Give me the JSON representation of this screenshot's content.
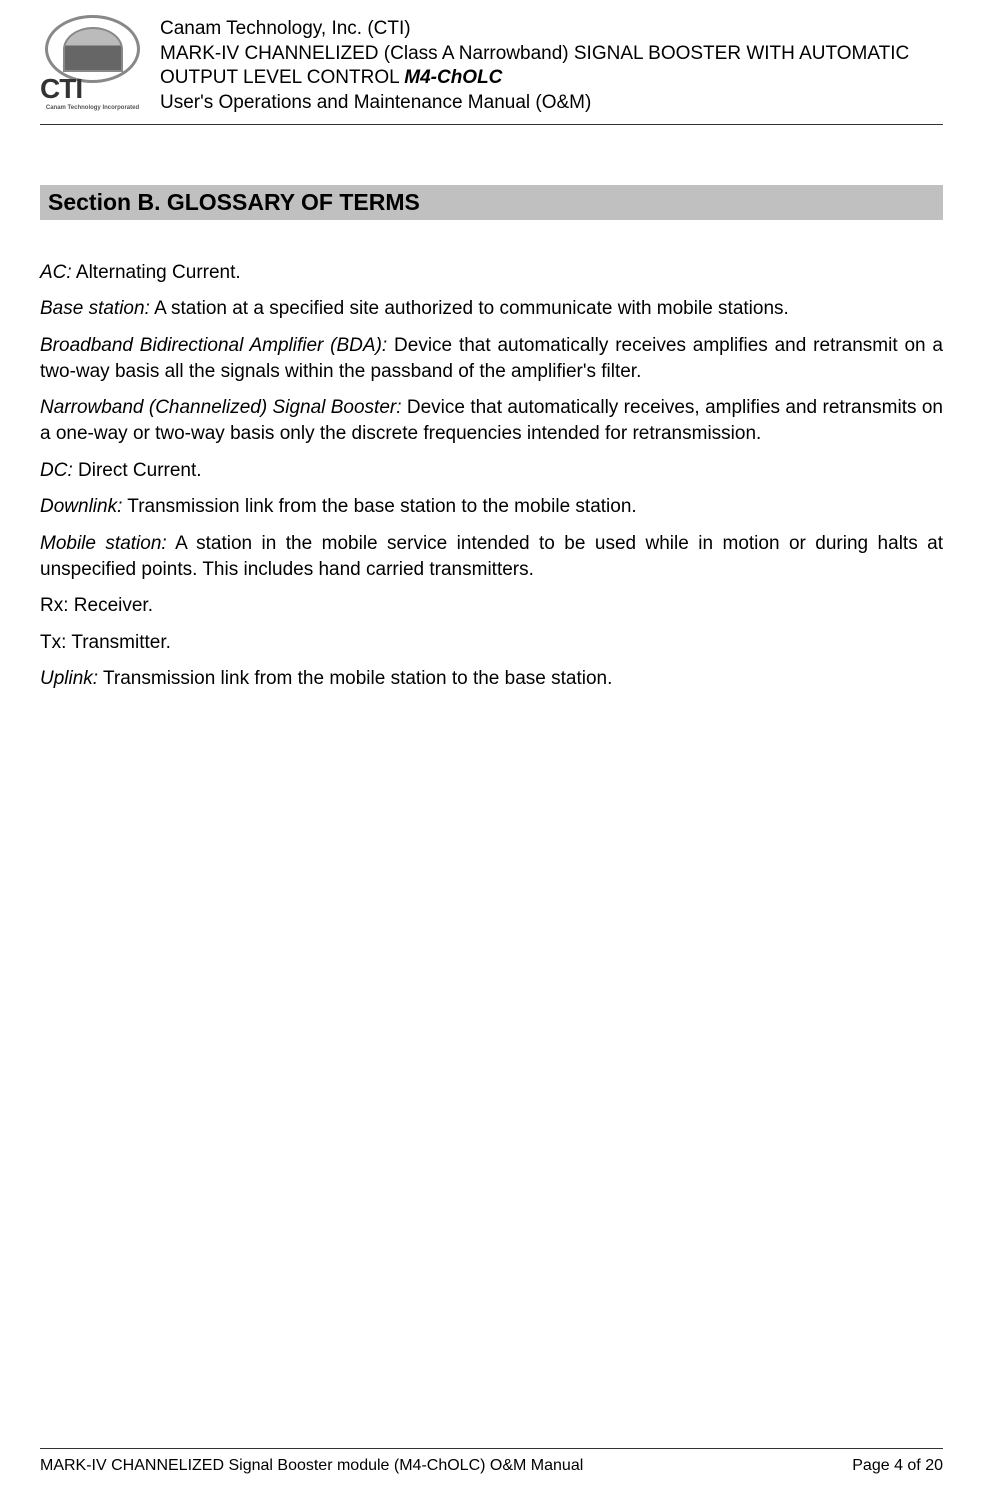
{
  "header": {
    "company": "Canam Technology, Inc. (CTI)",
    "product_line1": "MARK-IV CHANNELIZED (Class A Narrowband) SIGNAL BOOSTER WITH AUTOMATIC",
    "product_line2_prefix": "OUTPUT LEVEL CONTROL ",
    "product_model": "M4-ChOLC",
    "subtitle": "User's Operations and Maintenance Manual (O&M)",
    "logo_cti": "CTI",
    "logo_tagline": "Canam Technology Incorporated"
  },
  "section": {
    "heading": "Section B.     GLOSSARY OF TERMS"
  },
  "glossary": [
    {
      "term": "AC:",
      "def": " Alternating Current."
    },
    {
      "term": "Base station:",
      "def": " A station at a specified site authorized to communicate with mobile stations."
    },
    {
      "term": "Broadband Bidirectional Amplifier (BDA):",
      "def": " Device that automatically receives amplifies and retransmit on a two-way basis all the signals within the passband of the amplifier's filter."
    },
    {
      "term": "Narrowband (Channelized) Signal Booster:",
      "def": " Device that automatically receives, amplifies and retransmits on a one-way or two-way basis only the discrete frequencies intended for retransmission."
    },
    {
      "term": "DC:",
      "def": " Direct Current."
    },
    {
      "term": "Downlink:",
      "def": "  Transmission link from the base station to the mobile station."
    },
    {
      "term": "Mobile station:",
      "def": "  A station in the mobile service intended to be used while in motion or during halts at unspecified points.  This includes hand carried transmitters."
    },
    {
      "term": "",
      "def": "Rx: Receiver."
    },
    {
      "term": "",
      "def": "Tx: Transmitter."
    },
    {
      "term": "Uplink:",
      "def": "  Transmission link from the mobile station to the base station."
    }
  ],
  "footer": {
    "left": "MARK-IV CHANNELIZED Signal Booster module (M4-ChOLC) O&M Manual",
    "right": "Page 4 of 20"
  }
}
